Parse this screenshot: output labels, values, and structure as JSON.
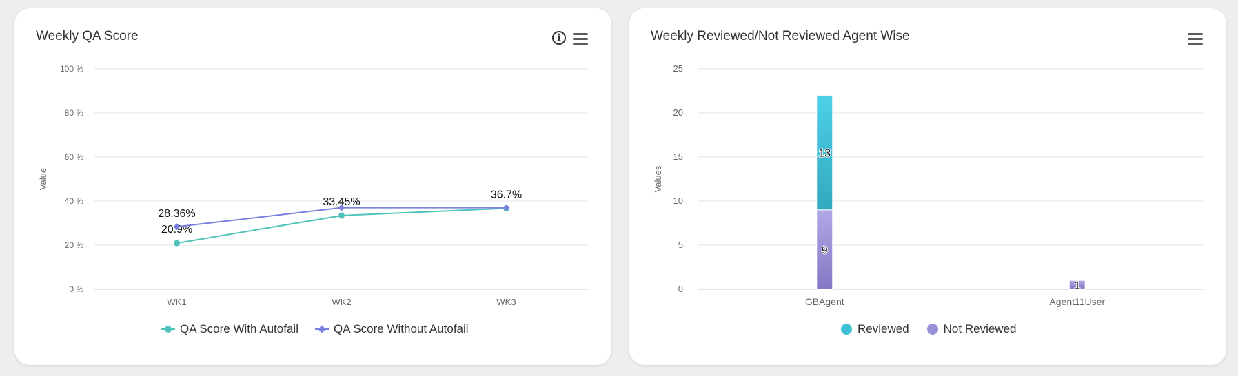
{
  "colors": {
    "teal": "#4fc3b9",
    "purple": "#7b7fe0",
    "reviewed_top": "#4dd0e8",
    "reviewed_bottom": "#33a9bd",
    "not_reviewed_top": "#b0a8e6",
    "not_reviewed_bottom": "#8379c4",
    "grid": "#e6e6e6"
  },
  "left_card": {
    "title": "Weekly QA Score",
    "icons": [
      "info-icon",
      "menu-icon"
    ]
  },
  "right_card": {
    "title": "Weekly Reviewed/Not Reviewed Agent Wise",
    "icons": [
      "menu-icon"
    ]
  },
  "chart_data": [
    {
      "type": "line",
      "title": "Weekly QA Score",
      "xlabel": "",
      "ylabel": "Value",
      "categories": [
        "WK1",
        "WK2",
        "WK3"
      ],
      "ylim": [
        0,
        100
      ],
      "yticks": [
        "0 %",
        "20 %",
        "40 %",
        "60 %",
        "80 %",
        "100 %"
      ],
      "grid": true,
      "legend": "bottom",
      "series": [
        {
          "name": "QA Score With Autofail",
          "values": [
            20.9,
            33.45,
            36.7
          ],
          "labels": [
            "20.9%",
            "33.45%",
            "36.7%"
          ],
          "color": "#4fc3b9",
          "marker": "circle"
        },
        {
          "name": "QA Score Without Autofail",
          "values": [
            28.36,
            37,
            37
          ],
          "labels": [
            "28.36%",
            "",
            ""
          ],
          "color": "#7b7fe0",
          "marker": "diamond"
        }
      ]
    },
    {
      "type": "bar",
      "stacked": true,
      "title": "Weekly Reviewed/Not Reviewed Agent Wise",
      "xlabel": "",
      "ylabel": "Values",
      "categories": [
        "GBAgent",
        "Agent11User"
      ],
      "ylim": [
        0,
        25
      ],
      "yticks": [
        "0",
        "5",
        "10",
        "15",
        "20",
        "25"
      ],
      "grid": true,
      "legend": "bottom",
      "series": [
        {
          "name": "Not Reviewed",
          "values": [
            9,
            1
          ],
          "labels": [
            "9",
            "1"
          ]
        },
        {
          "name": "Reviewed",
          "values": [
            13,
            0
          ],
          "labels": [
            "13",
            ""
          ]
        }
      ]
    }
  ]
}
